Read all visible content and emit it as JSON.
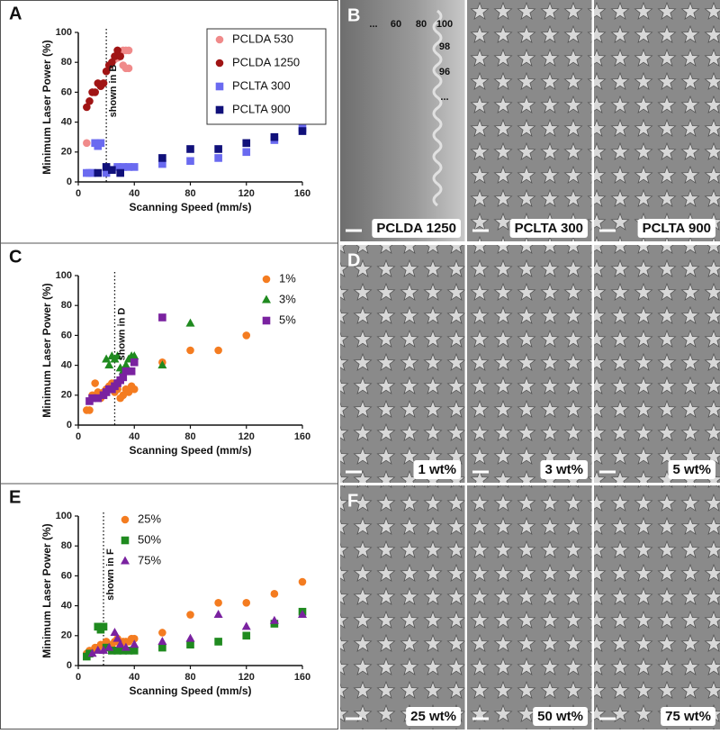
{
  "chart_data": [
    {
      "type": "scatter",
      "label": "A",
      "xlabel": "Scanning Speed  (mm/s)",
      "ylabel": "Minimum Laser Power (%)",
      "xlim": [
        0,
        160
      ],
      "ylim": [
        0,
        100
      ],
      "xticks": [
        0,
        40,
        80,
        120,
        160
      ],
      "yticks": [
        0,
        20,
        40,
        60,
        80,
        100
      ],
      "legend": "upper right",
      "legend_frame": true,
      "annotation": {
        "text": "shown in B",
        "x": 20
      },
      "series": [
        {
          "name": "PCLDA 530",
          "color": "#f08a8a",
          "marker": "circle",
          "x": [
            6,
            18,
            22,
            26,
            28,
            30,
            32,
            34,
            36,
            32,
            34,
            36
          ],
          "values": [
            26,
            66,
            78,
            82,
            83,
            86,
            88,
            88,
            88,
            78,
            76,
            76
          ]
        },
        {
          "name": "PCLDA 1250",
          "color": "#a01414",
          "marker": "circle",
          "x": [
            6,
            8,
            10,
            12,
            14,
            16,
            18,
            20,
            22,
            24,
            26,
            28,
            30
          ],
          "values": [
            50,
            54,
            60,
            60,
            66,
            64,
            66,
            74,
            78,
            80,
            84,
            88,
            84
          ]
        },
        {
          "name": "PCLTA 300",
          "color": "#6a6af0",
          "marker": "square",
          "x": [
            6,
            8,
            10,
            12,
            14,
            16,
            20,
            24,
            28,
            32,
            36,
            40,
            60,
            80,
            100,
            120,
            140,
            160
          ],
          "values": [
            6,
            6,
            6,
            26,
            24,
            26,
            6,
            8,
            10,
            10,
            10,
            10,
            12,
            14,
            16,
            20,
            28,
            36
          ]
        },
        {
          "name": "PCLTA 900",
          "color": "#10107a",
          "marker": "square",
          "x": [
            14,
            20,
            24,
            30,
            60,
            80,
            100,
            120,
            140,
            160
          ],
          "values": [
            6,
            10,
            8,
            6,
            16,
            22,
            22,
            26,
            30,
            34
          ]
        }
      ]
    },
    {
      "type": "scatter",
      "label": "C",
      "xlabel": "Scanning Speed  (mm/s)",
      "ylabel": "Minimum Laser Power (%)",
      "xlim": [
        0,
        160
      ],
      "ylim": [
        0,
        100
      ],
      "xticks": [
        0,
        40,
        80,
        120,
        160
      ],
      "yticks": [
        0,
        20,
        40,
        60,
        80,
        100
      ],
      "legend": "upper right",
      "legend_frame": false,
      "annotation": {
        "text": "shown in D",
        "x": 26
      },
      "series": [
        {
          "name": "1%",
          "color": "#f47c20",
          "marker": "circle",
          "x": [
            6,
            8,
            10,
            12,
            14,
            16,
            18,
            20,
            22,
            24,
            26,
            28,
            30,
            32,
            34,
            36,
            38,
            40,
            60,
            80,
            100,
            120
          ],
          "values": [
            10,
            10,
            20,
            28,
            22,
            18,
            22,
            24,
            26,
            28,
            22,
            24,
            18,
            20,
            24,
            22,
            26,
            24,
            42,
            50,
            50,
            60
          ]
        },
        {
          "name": "3%",
          "color": "#1f8a1f",
          "marker": "triangle",
          "x": [
            20,
            22,
            24,
            26,
            28,
            30,
            32,
            34,
            36,
            38,
            40,
            60,
            80
          ],
          "values": [
            44,
            40,
            46,
            44,
            46,
            38,
            36,
            40,
            44,
            46,
            46,
            40,
            68
          ]
        },
        {
          "name": "5%",
          "color": "#7a22a0",
          "marker": "square",
          "x": [
            8,
            10,
            14,
            18,
            20,
            22,
            24,
            26,
            28,
            30,
            32,
            34,
            36,
            38,
            40,
            60
          ],
          "values": [
            16,
            18,
            18,
            20,
            22,
            24,
            24,
            26,
            28,
            30,
            32,
            36,
            36,
            36,
            42,
            72
          ]
        }
      ]
    },
    {
      "type": "scatter",
      "label": "E",
      "xlabel": "Scanning Speed  (mm/s)",
      "ylabel": "Minimum Laser Power (%)",
      "xlim": [
        0,
        160
      ],
      "ylim": [
        0,
        100
      ],
      "xticks": [
        0,
        40,
        80,
        120,
        160
      ],
      "yticks": [
        0,
        20,
        40,
        60,
        80,
        100
      ],
      "legend": "upper left",
      "legend_frame": false,
      "annotation": {
        "text": "shown in F",
        "x": 18
      },
      "series": [
        {
          "name": "25%",
          "color": "#f47c20",
          "marker": "circle",
          "x": [
            6,
            8,
            10,
            12,
            14,
            16,
            18,
            20,
            22,
            24,
            26,
            28,
            30,
            32,
            34,
            36,
            38,
            40,
            60,
            80,
            100,
            120,
            140,
            160
          ],
          "values": [
            8,
            10,
            10,
            12,
            12,
            14,
            14,
            16,
            12,
            14,
            16,
            18,
            14,
            16,
            16,
            16,
            18,
            18,
            22,
            34,
            42,
            42,
            48,
            56
          ]
        },
        {
          "name": "50%",
          "color": "#1f8a1f",
          "marker": "square",
          "x": [
            6,
            8,
            14,
            16,
            18,
            20,
            24,
            28,
            32,
            36,
            40,
            60,
            80,
            100,
            120,
            140,
            160
          ],
          "values": [
            6,
            8,
            26,
            24,
            26,
            12,
            10,
            10,
            10,
            10,
            10,
            12,
            14,
            16,
            20,
            28,
            36
          ]
        },
        {
          "name": "75%",
          "color": "#7a22a0",
          "marker": "triangle",
          "x": [
            10,
            14,
            18,
            22,
            26,
            28,
            30,
            34,
            40,
            60,
            80,
            100,
            120,
            140,
            160
          ],
          "values": [
            8,
            10,
            10,
            12,
            22,
            18,
            14,
            12,
            14,
            16,
            18,
            34,
            26,
            30,
            34
          ]
        }
      ]
    }
  ],
  "images": [
    {
      "label": "B",
      "captions": [
        "PCLDA 1250",
        "PCLTA 300",
        "PCLTA 900"
      ],
      "numbers": [
        "...",
        "60",
        "80",
        "100",
        "98",
        "96",
        "..."
      ]
    },
    {
      "label": "D",
      "captions": [
        "1 wt%",
        "3 wt%",
        "5 wt%"
      ]
    },
    {
      "label": "F",
      "captions": [
        "25 wt%",
        "50 wt%",
        "75 wt%"
      ]
    }
  ]
}
